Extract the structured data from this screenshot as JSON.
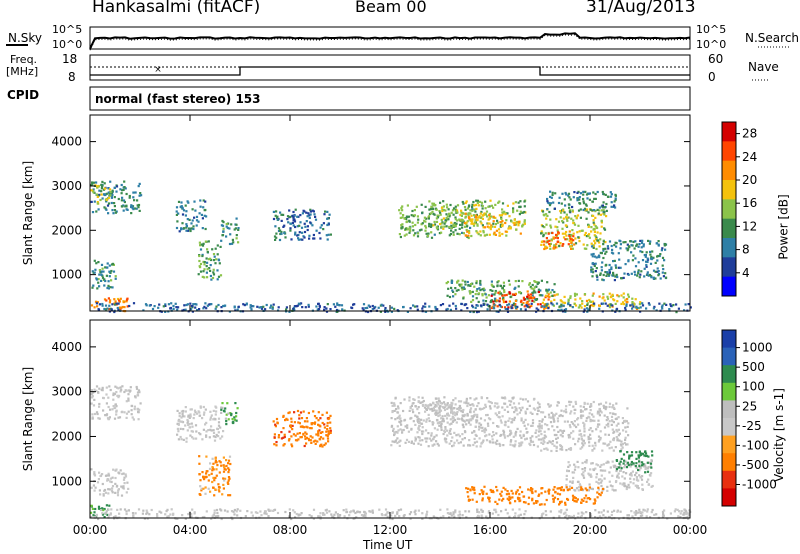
{
  "header": {
    "station": "Hankasalmi (fitACF)",
    "beam": "Beam 00",
    "date": "31/Aug/2013"
  },
  "top_panels": {
    "nsky_label": "N.Sky",
    "nsearch_label": "N.Search",
    "noise_ticks": [
      "10^5",
      "10^0"
    ],
    "freq_label_line1": "Freq.",
    "freq_label_line2": "[MHz]",
    "freq_ticks": [
      "18",
      "8"
    ],
    "nave_label": "Nave",
    "nave_ticks": [
      "60",
      "0"
    ],
    "cpid_label": "CPID",
    "cpid_text": "normal (fast stereo) 153"
  },
  "colors": {
    "power_scale": [
      "#0000ff",
      "#1f3d9a",
      "#2e7fa6",
      "#3a8a4c",
      "#8bc34a",
      "#f4c20d",
      "#ff8c00",
      "#ff4500",
      "#d40000"
    ],
    "velocity_scale": [
      "#1a3fa8",
      "#2a62b8",
      "#2e8b4f",
      "#6cc93a",
      "#bebebe",
      "#c8c8c8",
      "#ffa020",
      "#ff7f00",
      "#e83010",
      "#d40000"
    ]
  },
  "chart_data": [
    {
      "type": "heatmap",
      "panel": "power",
      "ylabel": "Slant Range [km]",
      "yticks": [
        1000,
        2000,
        3000,
        4000
      ],
      "ylim": [
        180,
        4600
      ],
      "xlim": [
        0,
        24
      ],
      "colorbar_label": "Power [dB]",
      "colorbar_ticks": [
        4,
        8,
        12,
        16,
        20,
        24,
        28
      ],
      "colorbar_range": [
        0,
        30
      ],
      "regions": [
        {
          "t": [
            0.0,
            2.0
          ],
          "r": [
            2400,
            3150
          ],
          "v": 9
        },
        {
          "t": [
            0.0,
            0.8
          ],
          "r": [
            2600,
            3050
          ],
          "v": 16
        },
        {
          "t": [
            0.0,
            1.0
          ],
          "r": [
            700,
            1400
          ],
          "v": 10
        },
        {
          "t": [
            0.0,
            1.5
          ],
          "r": [
            200,
            500
          ],
          "v": 24
        },
        {
          "t": [
            3.4,
            4.6
          ],
          "r": [
            2000,
            2700
          ],
          "v": 9
        },
        {
          "t": [
            4.3,
            5.2
          ],
          "r": [
            900,
            1800
          ],
          "v": 12
        },
        {
          "t": [
            5.2,
            5.9
          ],
          "r": [
            1700,
            2300
          ],
          "v": 10
        },
        {
          "t": [
            7.3,
            9.6
          ],
          "r": [
            1800,
            2500
          ],
          "v": 7
        },
        {
          "t": [
            12.3,
            15.3
          ],
          "r": [
            1850,
            2600
          ],
          "v": 13
        },
        {
          "t": [
            13.5,
            17.4
          ],
          "r": [
            2100,
            2700
          ],
          "v": 15
        },
        {
          "t": [
            14.8,
            17.2
          ],
          "r": [
            1900,
            2400
          ],
          "v": 19
        },
        {
          "t": [
            18.0,
            20.6
          ],
          "r": [
            1600,
            2500
          ],
          "v": 16
        },
        {
          "t": [
            18.1,
            19.4
          ],
          "r": [
            1600,
            2000
          ],
          "v": 24
        },
        {
          "t": [
            18.2,
            21.0
          ],
          "r": [
            2400,
            2900
          ],
          "v": 9
        },
        {
          "t": [
            20.0,
            23.0
          ],
          "r": [
            900,
            1800
          ],
          "v": 9
        },
        {
          "t": [
            14.2,
            18.6
          ],
          "r": [
            400,
            900
          ],
          "v": 12
        },
        {
          "t": [
            16.0,
            18.3
          ],
          "r": [
            250,
            650
          ],
          "v": 26
        },
        {
          "t": [
            18.0,
            22.0
          ],
          "r": [
            250,
            600
          ],
          "v": 18
        },
        {
          "t": [
            0.0,
            24.0
          ],
          "r": [
            180,
            380
          ],
          "v": 6
        }
      ]
    },
    {
      "type": "heatmap",
      "panel": "velocity",
      "ylabel": "Slant Range [km]",
      "yticks": [
        1000,
        2000,
        3000,
        4000
      ],
      "ylim": [
        180,
        4600
      ],
      "xlim": [
        0,
        24
      ],
      "xticks": [
        "00:00",
        "04:00",
        "08:00",
        "12:00",
        "16:00",
        "20:00",
        "00:00"
      ],
      "xlabel": "Time UT",
      "colorbar_label": "Velocity [m s-1]",
      "colorbar_ticks": [
        "1000",
        "500",
        "100",
        "25",
        "-25",
        "-100",
        "-500",
        "-1000"
      ],
      "regions": [
        {
          "t": [
            0.0,
            2.0
          ],
          "r": [
            2400,
            3150
          ],
          "v": 0
        },
        {
          "t": [
            0.0,
            1.5
          ],
          "r": [
            700,
            1300
          ],
          "v": 0
        },
        {
          "t": [
            0.0,
            1.0
          ],
          "r": [
            200,
            500
          ],
          "v": 200
        },
        {
          "t": [
            3.4,
            5.3
          ],
          "r": [
            1900,
            2700
          ],
          "v": 0
        },
        {
          "t": [
            4.3,
            5.6
          ],
          "r": [
            700,
            1600
          ],
          "v": -150
        },
        {
          "t": [
            5.2,
            5.9
          ],
          "r": [
            2300,
            2800
          ],
          "v": 150
        },
        {
          "t": [
            7.3,
            9.6
          ],
          "r": [
            1800,
            2600
          ],
          "v": -400
        },
        {
          "t": [
            12.0,
            18.0
          ],
          "r": [
            1800,
            2900
          ],
          "v": 0
        },
        {
          "t": [
            13.0,
            15.5
          ],
          "r": [
            2300,
            2800
          ],
          "v": 0
        },
        {
          "t": [
            18.0,
            21.5
          ],
          "r": [
            1700,
            2800
          ],
          "v": 0
        },
        {
          "t": [
            19.0,
            22.5
          ],
          "r": [
            800,
            1500
          ],
          "v": 0
        },
        {
          "t": [
            21.0,
            22.5
          ],
          "r": [
            1200,
            1700
          ],
          "v": 300
        },
        {
          "t": [
            15.0,
            20.5
          ],
          "r": [
            500,
            900
          ],
          "v": -300
        },
        {
          "t": [
            0.0,
            24.0
          ],
          "r": [
            180,
            400
          ],
          "v": 0
        }
      ]
    }
  ]
}
